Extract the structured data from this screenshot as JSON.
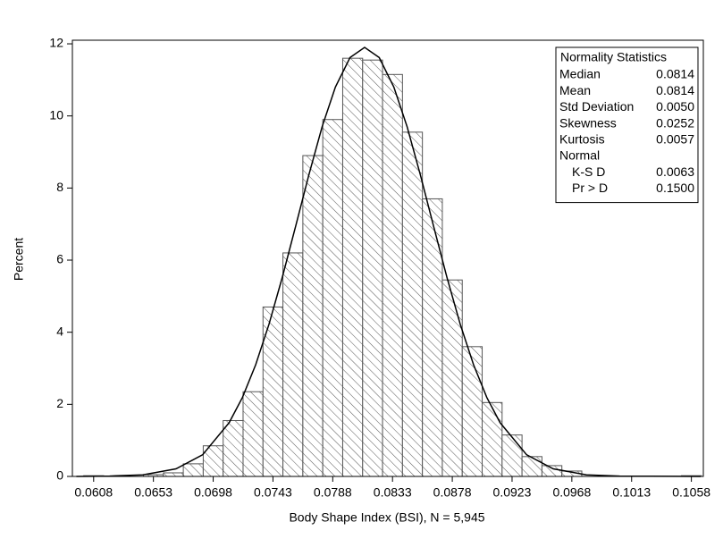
{
  "chart_data": {
    "type": "histogram",
    "xlabel": "Body Shape Index (BSI), N = 5,945",
    "ylabel": "Percent",
    "bins": [
      0.06005,
      0.06155,
      0.06305,
      0.06455,
      0.06605,
      0.06755,
      0.06905,
      0.07055,
      0.07205,
      0.07355,
      0.07505,
      0.07655,
      0.07805,
      0.07955,
      0.08105,
      0.08255,
      0.08405,
      0.08555,
      0.08705,
      0.08855,
      0.09005,
      0.09155,
      0.09305,
      0.09455,
      0.09605,
      0.09755,
      0.09905,
      0.10055,
      0.10205,
      0.10355,
      0.10505,
      0.10655
    ],
    "values": [
      0.02,
      0,
      0,
      0.05,
      0.1,
      0.35,
      0.85,
      1.55,
      2.35,
      4.7,
      6.2,
      8.9,
      9.9,
      11.6,
      11.55,
      11.15,
      9.55,
      7.7,
      5.45,
      3.6,
      2.05,
      1.15,
      0.55,
      0.3,
      0.15,
      0,
      0,
      0,
      0,
      0,
      0.02
    ],
    "color": "#555555",
    "curve": {
      "x": [
        0.0595,
        0.062,
        0.0645,
        0.067,
        0.069,
        0.071,
        0.072,
        0.073,
        0.074,
        0.075,
        0.076,
        0.077,
        0.078,
        0.079,
        0.0801,
        0.0812,
        0.0823,
        0.0834,
        0.0844,
        0.0854,
        0.0864,
        0.0874,
        0.0884,
        0.0894,
        0.0904,
        0.0914,
        0.0934,
        0.0954,
        0.0979,
        0.1004,
        0.1065
      ],
      "values": [
        0,
        0.01,
        0.045,
        0.21,
        0.6,
        1.49,
        2.19,
        3.1,
        4.22,
        5.52,
        6.93,
        8.36,
        9.7,
        10.8,
        11.62,
        11.9,
        11.62,
        10.8,
        9.7,
        8.36,
        6.93,
        5.52,
        4.22,
        3.1,
        2.19,
        1.49,
        0.6,
        0.21,
        0.045,
        0.01,
        0
      ],
      "color": "#000000"
    },
    "xlim": [
      0.0592,
      0.1067
    ],
    "xticks": [
      0.0608,
      0.0653,
      0.0698,
      0.0743,
      0.0788,
      0.0833,
      0.0878,
      0.0923,
      0.0968,
      0.1013,
      0.1058
    ],
    "ylim": [
      0,
      12.1
    ],
    "yticks": [
      0,
      2,
      4,
      6,
      8,
      10,
      12
    ],
    "inset": {
      "title": "Normality Statistics",
      "rows": [
        [
          "Median",
          "0.0814"
        ],
        [
          "Mean",
          "0.0814"
        ],
        [
          "Std Deviation",
          "0.0050"
        ],
        [
          "Skewness",
          "0.0252"
        ],
        [
          "Kurtosis",
          "0.0057"
        ],
        [
          "Normal"
        ],
        [
          "K-S D",
          "0.0063"
        ],
        [
          "Pr > D",
          "0.1500"
        ]
      ]
    }
  }
}
